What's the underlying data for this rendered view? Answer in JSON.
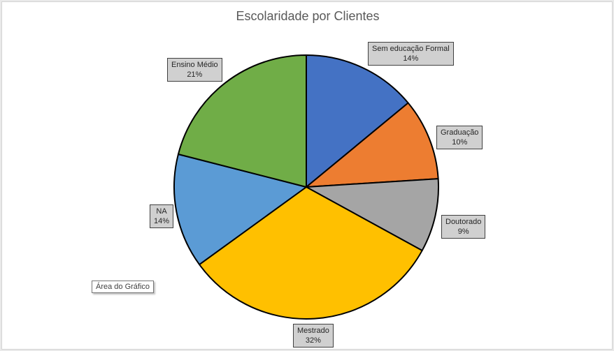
{
  "chart_data": {
    "type": "pie",
    "title": "Escolaridade por Clientes",
    "categories": [
      "Sem educação Formal",
      "Graduação",
      "Doutorado",
      "Mestrado",
      "NA",
      "Ensino Médio"
    ],
    "values": [
      14,
      10,
      9,
      32,
      14,
      21
    ],
    "percent_labels": [
      "14%",
      "10%",
      "9%",
      "32%",
      "14%",
      "21%"
    ],
    "colors": [
      "#4472c4",
      "#ed7d31",
      "#a5a5a5",
      "#ffc000",
      "#5b9bd5",
      "#70ad47"
    ],
    "start": "12 o'clock, clockwise",
    "legend": "none"
  },
  "tooltip": {
    "text": "Área do Gráfico"
  }
}
